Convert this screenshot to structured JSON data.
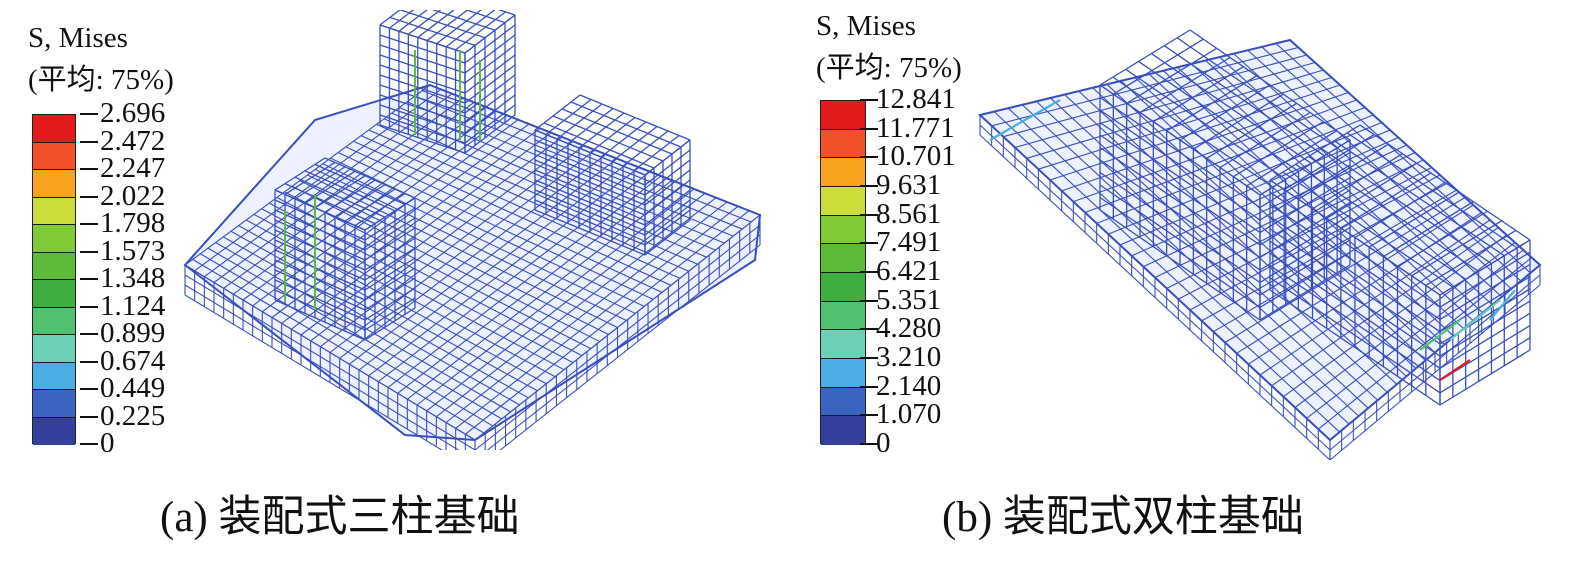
{
  "panels": [
    {
      "legend": {
        "title_line1": "S, Mises",
        "title_line2": "(平均: 75%)",
        "ticks": [
          "2.696",
          "2.472",
          "2.247",
          "2.022",
          "1.798",
          "1.573",
          "1.348",
          "1.124",
          "0.899",
          "0.674",
          "0.449",
          "0.225",
          "0"
        ],
        "colors": [
          "#e31a1c",
          "#f0512a",
          "#f8a21f",
          "#ccdc3b",
          "#7fcb35",
          "#5cbb3a",
          "#3fae3f",
          "#53c070",
          "#6ccfb6",
          "#4aaee4",
          "#3a63c2",
          "#34409c"
        ]
      },
      "caption": "(a) 装配式三柱基础",
      "mesh_color": "#3a4fbf"
    },
    {
      "legend": {
        "title_line1": "S, Mises",
        "title_line2": "(平均: 75%)",
        "ticks": [
          "12.841",
          "11.771",
          "10.701",
          "9.631",
          "8.561",
          "7.491",
          "6.421",
          "5.351",
          "4.280",
          "3.210",
          "2.140",
          "1.070",
          "0"
        ],
        "colors": [
          "#e31a1c",
          "#f0512a",
          "#f8a21f",
          "#ccdc3b",
          "#7fcb35",
          "#5cbb3a",
          "#3fae3f",
          "#53c070",
          "#6ccfb6",
          "#4aaee4",
          "#3a63c2",
          "#34409c"
        ]
      },
      "caption": "(b) 装配式双柱基础",
      "mesh_color": "#3a4fbf"
    }
  ]
}
